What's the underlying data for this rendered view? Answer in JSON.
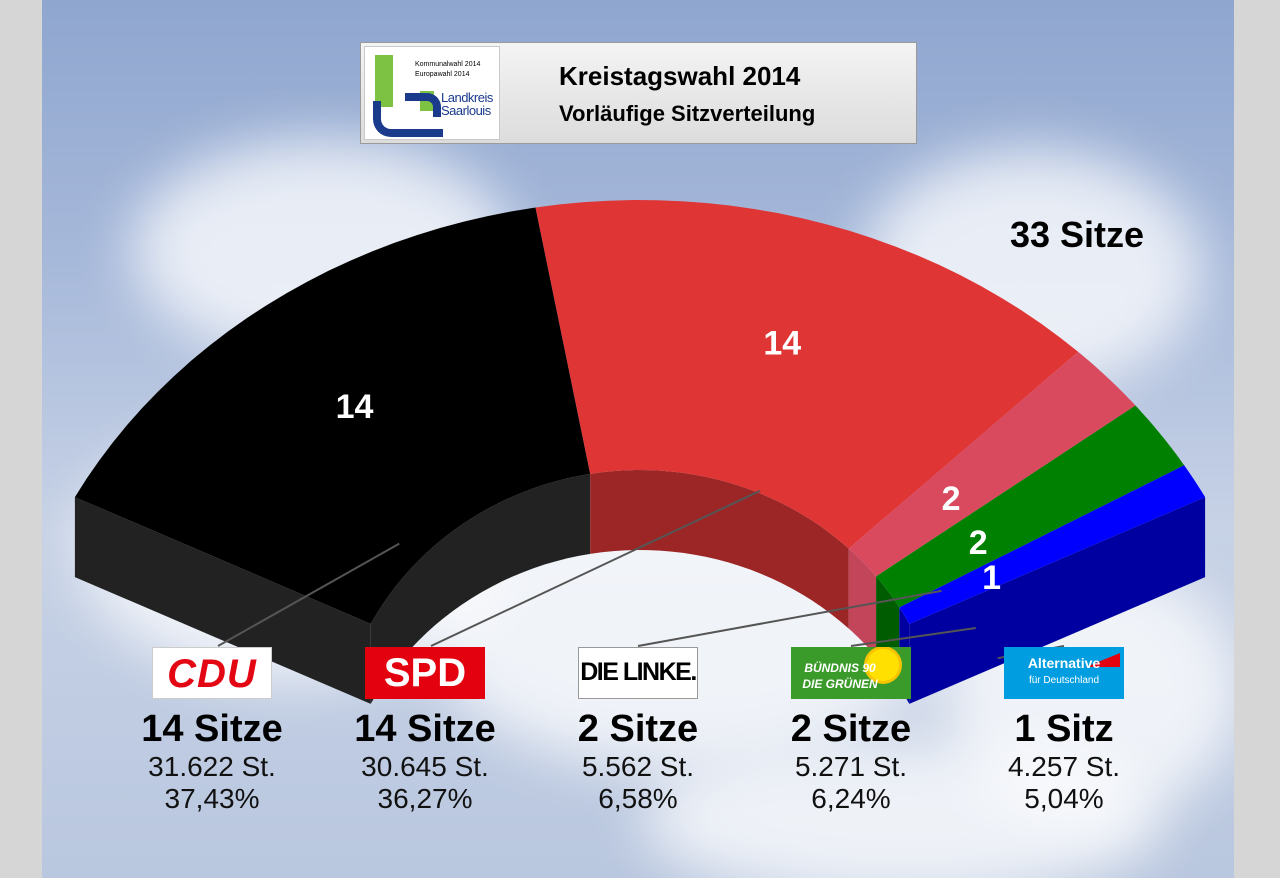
{
  "header": {
    "title": "Kreistagswahl 2014",
    "subtitle": "Vorläufige Sitzverteilung",
    "logo": {
      "line1": "Kommunalwahl 2014",
      "line2": "Europawahl 2014",
      "name1": "Landkreis",
      "name2": "Saarlouis"
    }
  },
  "total_seats_label": "33 Sitze",
  "chart_data": {
    "type": "pie",
    "variant": "3d-half-donut-seat-distribution",
    "title": "Kreistagswahl 2014",
    "subtitle": "Vorläufige Sitzverteilung",
    "total_seats": 33,
    "series": [
      {
        "name": "CDU",
        "seats": 14,
        "seats_label": "14 Sitze",
        "votes_label": "31.622 St.",
        "percent_label": "37,43%",
        "color": "#000000",
        "side_color": "#222222"
      },
      {
        "name": "SPD",
        "seats": 14,
        "seats_label": "14 Sitze",
        "votes_label": "30.645 St.",
        "percent_label": "36,27%",
        "color": "#e03535",
        "side_color": "#9c2626"
      },
      {
        "name": "DIE LINKE.",
        "seats": 2,
        "seats_label": "2 Sitze",
        "votes_label": "5.562 St.",
        "percent_label": "6,58%",
        "color": "#d94a5f",
        "side_color": "#c24559"
      },
      {
        "name": "BÜNDNIS 90 DIE GRÜNEN",
        "seats": 2,
        "seats_label": "2 Sitze",
        "votes_label": "5.271 St.",
        "percent_label": "6,24%",
        "color": "#008000",
        "side_color": "#005c00"
      },
      {
        "name": "Alternative für Deutschland",
        "seats": 1,
        "seats_label": "1 Sitz",
        "votes_label": "4.257 St.",
        "percent_label": "5,04%",
        "color": "#0000ff",
        "side_color": "#0000a0"
      }
    ]
  },
  "logos": {
    "cdu": "CDU",
    "spd": "SPD",
    "linke": "DIE LINKE.",
    "gruene_line1": "BÜNDNIS 90",
    "gruene_line2": "DIE GRÜNEN",
    "afd_line1": "Alternative",
    "afd_line2": "für Deutschland"
  },
  "colors": {
    "cdu_logo_red": "#e30613",
    "spd_logo_red": "#e3000f",
    "gruene_green": "#3a9a2a",
    "afd_blue": "#009ee0"
  }
}
